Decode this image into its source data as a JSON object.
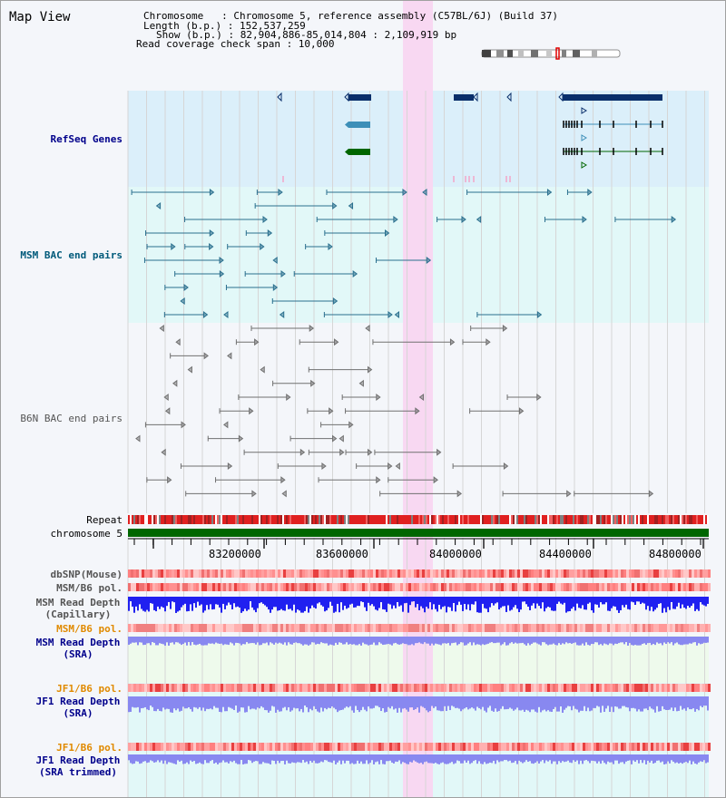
{
  "header": {
    "title": "Map View",
    "chromosome_line": "Chromosome   : Chromosome 5, reference assembly (C57BL/6J) (Build 37)",
    "length_line": "Length (b.p.) : 152,537,259",
    "show_line": "Show (b.p.) : 82,904,886-85,014,804 : 2,109,919 bp",
    "span_line": "Read coverage check span : 10,000"
  },
  "tracks": {
    "refseq": "RefSeq Genes",
    "msm_bac": "MSM BAC end pairs",
    "b6n_bac": "B6N BAC end pairs",
    "repeat": "Repeat",
    "chromosome": "chromosome 5",
    "dbsnp": "dbSNP(Mouse)",
    "msm_b6_pol_1": "MSM/B6 pol.",
    "msm_read_depth_cap_1": "MSM Read Depth",
    "msm_read_depth_cap_2": "(Capillary)",
    "msm_b6_pol_2": "MSM/B6 pol.",
    "msm_read_depth_sra_1": "MSM Read Depth",
    "msm_read_depth_sra_2": "(SRA)",
    "jf1_b6_pol_1": "JF1/B6 pol.",
    "jf1_read_depth_sra_1": "JF1 Read Depth",
    "jf1_read_depth_sra_2": "(SRA)",
    "jf1_b6_pol_2": "JF1/B6 pol.",
    "jf1_read_depth_trim_1": "JF1 Read Depth",
    "jf1_read_depth_trim_2": "(SRA trimmed)"
  },
  "ruler": {
    "ticks": [
      "83200000",
      "83600000",
      "84000000",
      "84400000",
      "84800000"
    ]
  },
  "colors": {
    "refseq_bg": "#dbeffa",
    "bac_bg": "#e2f8f8",
    "highlight": "#f8d8f2",
    "refseq_dark": "#0a2f6b",
    "refseq_mid": "#3d8fb8",
    "refseq_green": "#006600",
    "msm_bac": "#2a6f8e",
    "b6n_bac": "#707070",
    "chromosome": "#006600",
    "read_depth_cap": "#2020f0",
    "read_depth_sra": "#8888f0",
    "label_blue": "#00008b",
    "label_teal": "#005a7a",
    "label_gray": "#555555",
    "label_orange": "#e08a00"
  }
}
